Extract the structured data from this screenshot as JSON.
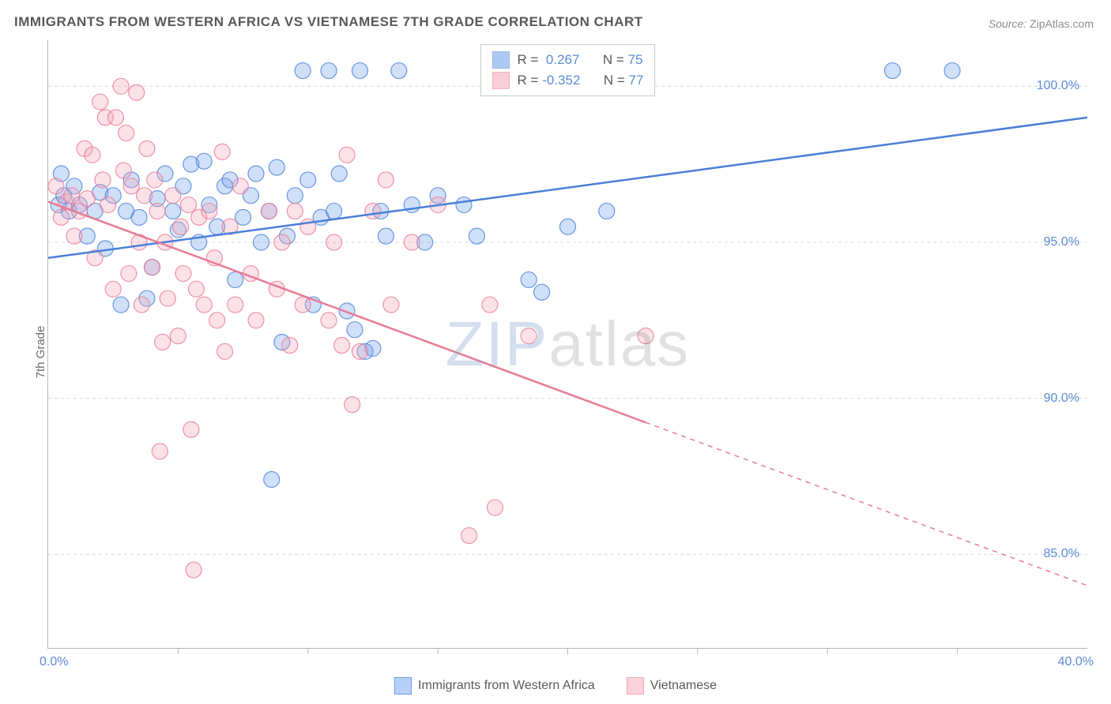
{
  "title": "IMMIGRANTS FROM WESTERN AFRICA VS VIETNAMESE 7TH GRADE CORRELATION CHART",
  "source": {
    "label": "Source:",
    "value": "ZipAtlas.com"
  },
  "ylabel": "7th Grade",
  "watermark": {
    "part1": "ZIP",
    "part2": "atlas"
  },
  "chart": {
    "type": "scatter",
    "xlim": [
      0,
      40
    ],
    "ylim": [
      82,
      101.5
    ],
    "xtick_min": {
      "pos": 0,
      "label": "0.0%"
    },
    "xtick_max": {
      "pos": 40,
      "label": "40.0%"
    },
    "xtick_marks": [
      5,
      10,
      15,
      20,
      25,
      30,
      35
    ],
    "yticks": [
      {
        "pos": 85,
        "label": "85.0%"
      },
      {
        "pos": 90,
        "label": "90.0%"
      },
      {
        "pos": 95,
        "label": "95.0%"
      },
      {
        "pos": 100,
        "label": "100.0%"
      }
    ],
    "grid_color": "#d8d8d8",
    "grid_dash": "4,4",
    "background_color": "#ffffff",
    "marker_radius": 10,
    "marker_opacity": 0.32,
    "marker_stroke_opacity": 0.8,
    "line_width": 2.5,
    "series": [
      {
        "name": "Immigrants from Western Africa",
        "color": "#6d9eeb",
        "stroke": "#4a7fd8",
        "R": "0.267",
        "N": "75",
        "trend": {
          "x1": 0,
          "y1": 94.5,
          "x2": 40,
          "y2": 99.0,
          "solid_until": 40
        },
        "points": [
          [
            0.4,
            96.2
          ],
          [
            0.5,
            97.2
          ],
          [
            0.6,
            96.5
          ],
          [
            0.8,
            96.0
          ],
          [
            1.0,
            96.8
          ],
          [
            1.2,
            96.2
          ],
          [
            1.5,
            95.2
          ],
          [
            1.8,
            96.0
          ],
          [
            2.0,
            96.6
          ],
          [
            2.2,
            94.8
          ],
          [
            2.5,
            96.5
          ],
          [
            2.8,
            93.0
          ],
          [
            3.0,
            96.0
          ],
          [
            3.2,
            97.0
          ],
          [
            3.5,
            95.8
          ],
          [
            3.8,
            93.2
          ],
          [
            4.0,
            94.2
          ],
          [
            4.2,
            96.4
          ],
          [
            4.5,
            97.2
          ],
          [
            4.8,
            96.0
          ],
          [
            5.0,
            95.4
          ],
          [
            5.2,
            96.8
          ],
          [
            5.5,
            97.5
          ],
          [
            5.8,
            95.0
          ],
          [
            6.0,
            97.6
          ],
          [
            6.2,
            96.2
          ],
          [
            6.5,
            95.5
          ],
          [
            6.8,
            96.8
          ],
          [
            7.0,
            97.0
          ],
          [
            7.2,
            93.8
          ],
          [
            7.5,
            95.8
          ],
          [
            7.8,
            96.5
          ],
          [
            8.0,
            97.2
          ],
          [
            8.2,
            95.0
          ],
          [
            8.5,
            96.0
          ],
          [
            8.8,
            97.4
          ],
          [
            9.0,
            91.8
          ],
          [
            9.2,
            95.2
          ],
          [
            9.5,
            96.5
          ],
          [
            9.8,
            100.5
          ],
          [
            10.0,
            97.0
          ],
          [
            10.2,
            93.0
          ],
          [
            10.5,
            95.8
          ],
          [
            10.8,
            100.5
          ],
          [
            11.0,
            96.0
          ],
          [
            11.2,
            97.2
          ],
          [
            11.5,
            92.8
          ],
          [
            11.8,
            92.2
          ],
          [
            12.0,
            100.5
          ],
          [
            12.2,
            91.5
          ],
          [
            12.5,
            91.6
          ],
          [
            12.8,
            96.0
          ],
          [
            13.0,
            95.2
          ],
          [
            13.5,
            100.5
          ],
          [
            14.0,
            96.2
          ],
          [
            14.5,
            95.0
          ],
          [
            15.0,
            96.5
          ],
          [
            16.0,
            96.2
          ],
          [
            16.5,
            95.2
          ],
          [
            17.0,
            100.5
          ],
          [
            18.5,
            93.8
          ],
          [
            19.0,
            93.4
          ],
          [
            20.0,
            95.5
          ],
          [
            21.5,
            96.0
          ],
          [
            8.6,
            87.4
          ],
          [
            32.5,
            100.5
          ],
          [
            34.8,
            100.5
          ]
        ]
      },
      {
        "name": "Vietnamese",
        "color": "#f4a6b7",
        "stroke": "#e87a94",
        "R": "-0.352",
        "N": "77",
        "trend": {
          "x1": 0,
          "y1": 96.3,
          "x2": 40,
          "y2": 84.0,
          "solid_until": 23
        },
        "points": [
          [
            0.3,
            96.8
          ],
          [
            0.5,
            95.8
          ],
          [
            0.7,
            96.3
          ],
          [
            0.9,
            96.5
          ],
          [
            1.0,
            95.2
          ],
          [
            1.2,
            96.0
          ],
          [
            1.4,
            98.0
          ],
          [
            1.5,
            96.4
          ],
          [
            1.7,
            97.8
          ],
          [
            1.8,
            94.5
          ],
          [
            2.0,
            99.5
          ],
          [
            2.1,
            97.0
          ],
          [
            2.2,
            99.0
          ],
          [
            2.3,
            96.2
          ],
          [
            2.5,
            93.5
          ],
          [
            2.6,
            99.0
          ],
          [
            2.8,
            100.0
          ],
          [
            2.9,
            97.3
          ],
          [
            3.0,
            98.5
          ],
          [
            3.1,
            94.0
          ],
          [
            3.2,
            96.8
          ],
          [
            3.4,
            99.8
          ],
          [
            3.5,
            95.0
          ],
          [
            3.6,
            93.0
          ],
          [
            3.7,
            96.5
          ],
          [
            3.8,
            98.0
          ],
          [
            4.0,
            94.2
          ],
          [
            4.1,
            97.0
          ],
          [
            4.2,
            96.0
          ],
          [
            4.4,
            91.8
          ],
          [
            4.5,
            95.0
          ],
          [
            4.6,
            93.2
          ],
          [
            4.8,
            96.5
          ],
          [
            5.0,
            92.0
          ],
          [
            5.1,
            95.5
          ],
          [
            5.2,
            94.0
          ],
          [
            5.4,
            96.2
          ],
          [
            5.5,
            89.0
          ],
          [
            5.7,
            93.5
          ],
          [
            5.8,
            95.8
          ],
          [
            6.0,
            93.0
          ],
          [
            6.2,
            96.0
          ],
          [
            6.4,
            94.5
          ],
          [
            6.5,
            92.5
          ],
          [
            6.7,
            97.9
          ],
          [
            6.8,
            91.5
          ],
          [
            7.0,
            95.5
          ],
          [
            7.2,
            93.0
          ],
          [
            7.4,
            96.8
          ],
          [
            4.3,
            88.3
          ],
          [
            7.8,
            94.0
          ],
          [
            8.0,
            92.5
          ],
          [
            5.6,
            84.5
          ],
          [
            8.5,
            96.0
          ],
          [
            8.8,
            93.5
          ],
          [
            9.0,
            95.0
          ],
          [
            9.3,
            91.7
          ],
          [
            9.5,
            96.0
          ],
          [
            9.8,
            93.0
          ],
          [
            10.0,
            95.5
          ],
          [
            17.2,
            86.5
          ],
          [
            10.8,
            92.5
          ],
          [
            11.0,
            95.0
          ],
          [
            11.3,
            91.7
          ],
          [
            11.5,
            97.8
          ],
          [
            11.7,
            89.8
          ],
          [
            12.0,
            91.5
          ],
          [
            12.5,
            96.0
          ],
          [
            13.0,
            97.0
          ],
          [
            13.2,
            93.0
          ],
          [
            14.0,
            95.0
          ],
          [
            15.0,
            96.2
          ],
          [
            16.2,
            85.6
          ],
          [
            17.0,
            93.0
          ],
          [
            18.5,
            92.0
          ],
          [
            23.0,
            92.0
          ]
        ]
      }
    ]
  },
  "legend_bottom": [
    {
      "label": "Immigrants from Western Africa",
      "fill": "#b8d0f5",
      "stroke": "#6d9eeb"
    },
    {
      "label": "Vietnamese",
      "fill": "#fad2db",
      "stroke": "#f4a6b7"
    }
  ],
  "legend_top": {
    "r_label": "R =",
    "n_label": "N ="
  }
}
